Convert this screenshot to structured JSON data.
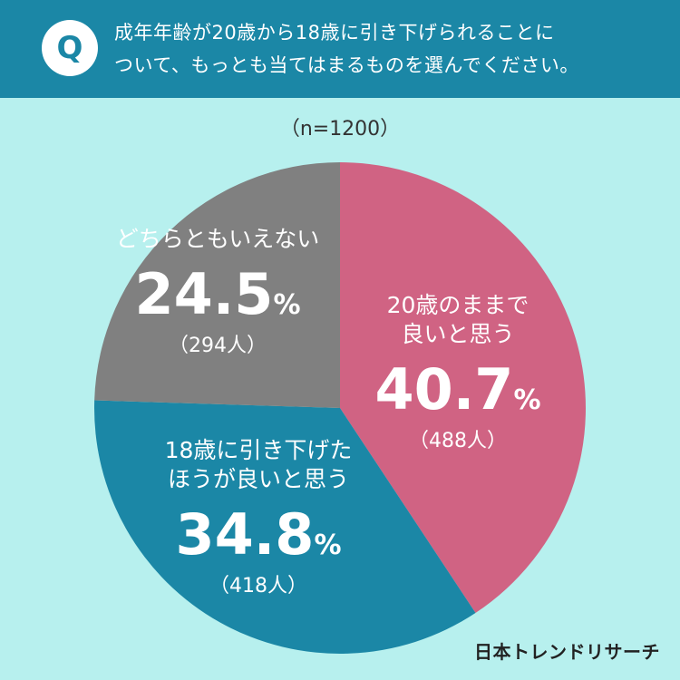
{
  "header": {
    "badge": "Q",
    "question_line1": "成年年齢が20歳から18歳に引き下げられることに",
    "question_line2": "ついて、もっとも当てはまるものを選んでください。"
  },
  "sample_label": "（n=1200）",
  "colors": {
    "background": "#b7f0ee",
    "header": "#1b87a6",
    "keep_20": "#d06383",
    "lower_18": "#1b87a6",
    "neither": "#808080",
    "label_text": "#ffffff"
  },
  "chart_data": {
    "type": "pie",
    "n": 1200,
    "slices": [
      {
        "label_lines": [
          "20歳のままで",
          "良いと思う"
        ],
        "percent": 40.7,
        "percent_text": "40.7",
        "count_text": "（488人）",
        "color": "#d06383"
      },
      {
        "label_lines": [
          "18歳に引き下げた",
          "ほうが良いと思う"
        ],
        "percent": 34.8,
        "percent_text": "34.8",
        "count_text": "（418人）",
        "color": "#1b87a6"
      },
      {
        "label_lines": [
          "どちらともいえない"
        ],
        "percent": 24.5,
        "percent_text": "24.5",
        "count_text": "（294人）",
        "color": "#808080"
      }
    ],
    "percent_sign": "%"
  },
  "footer": {
    "brand": "日本トレンドリサーチ"
  }
}
